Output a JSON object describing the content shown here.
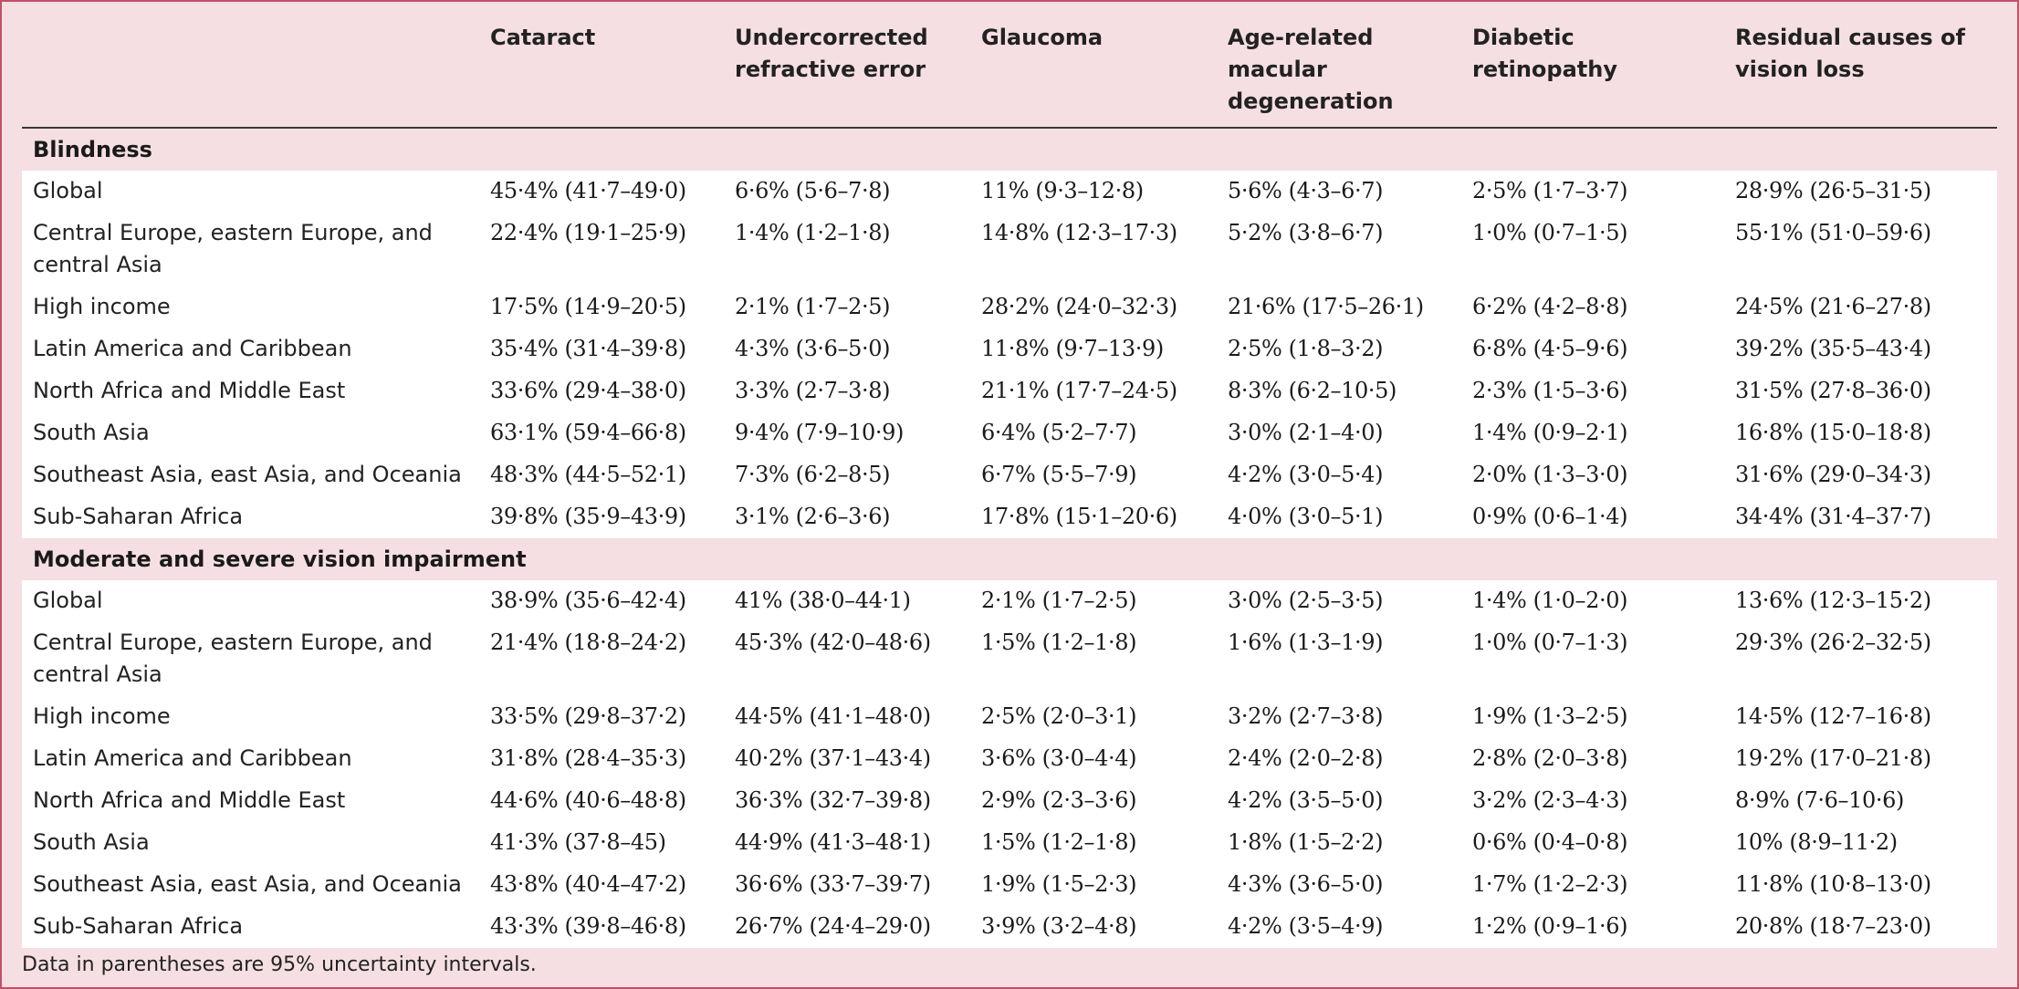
{
  "header": {
    "columns": [
      "",
      "Cataract",
      "Undercorrected refractive error",
      "Glaucoma",
      "Age-related macular degeneration",
      "Diabetic retinopathy",
      "Residual causes of vision loss"
    ]
  },
  "sections": [
    {
      "title": "Blindness",
      "rows": [
        {
          "region": "Global",
          "values": [
            "45·4% (41·7–49·0)",
            "6·6% (5·6–7·8)",
            "11% (9·3–12·8)",
            "5·6% (4·3–6·7)",
            "2·5% (1·7–3·7)",
            "28·9% (26·5–31·5)"
          ]
        },
        {
          "region": "Central Europe, eastern Europe, and central Asia",
          "values": [
            "22·4% (19·1–25·9)",
            "1·4% (1·2–1·8)",
            "14·8% (12·3–17·3)",
            "5·2% (3·8–6·7)",
            "1·0% (0·7–1·5)",
            "55·1% (51·0–59·6)"
          ]
        },
        {
          "region": "High income",
          "values": [
            "17·5% (14·9–20·5)",
            "2·1% (1·7–2·5)",
            "28·2% (24·0–32·3)",
            "21·6% (17·5–26·1)",
            "6·2% (4·2–8·8)",
            "24·5% (21·6–27·8)"
          ]
        },
        {
          "region": "Latin America and Caribbean",
          "values": [
            "35·4% (31·4–39·8)",
            "4·3% (3·6–5·0)",
            "11·8% (9·7–13·9)",
            "2·5% (1·8–3·2)",
            "6·8% (4·5–9·6)",
            "39·2% (35·5–43·4)"
          ]
        },
        {
          "region": "North Africa and Middle East",
          "values": [
            "33·6% (29·4–38·0)",
            "3·3% (2·7–3·8)",
            "21·1% (17·7–24·5)",
            "8·3% (6·2–10·5)",
            "2·3% (1·5–3·6)",
            "31·5% (27·8–36·0)"
          ]
        },
        {
          "region": "South Asia",
          "values": [
            "63·1% (59·4–66·8)",
            "9·4% (7·9–10·9)",
            "6·4% (5·2–7·7)",
            "3·0% (2·1–4·0)",
            "1·4% (0·9–2·1)",
            "16·8% (15·0–18·8)"
          ]
        },
        {
          "region": "Southeast Asia, east Asia, and Oceania",
          "values": [
            "48·3% (44·5–52·1)",
            "7·3% (6·2–8·5)",
            "6·7% (5·5–7·9)",
            "4·2% (3·0–5·4)",
            "2·0% (1·3–3·0)",
            "31·6% (29·0–34·3)"
          ]
        },
        {
          "region": "Sub-Saharan Africa",
          "values": [
            "39·8% (35·9–43·9)",
            "3·1% (2·6–3·6)",
            "17·8% (15·1–20·6)",
            "4·0% (3·0–5·1)",
            "0·9% (0·6–1·4)",
            "34·4% (31·4–37·7)"
          ]
        }
      ]
    },
    {
      "title": "Moderate and severe vision impairment",
      "rows": [
        {
          "region": "Global",
          "values": [
            "38·9% (35·6–42·4)",
            "41% (38·0–44·1)",
            "2·1% (1·7–2·5)",
            "3·0% (2·5–3·5)",
            "1·4% (1·0–2·0)",
            "13·6% (12·3–15·2)"
          ]
        },
        {
          "region": "Central Europe, eastern Europe, and central Asia",
          "values": [
            "21·4% (18·8–24·2)",
            "45·3% (42·0–48·6)",
            "1·5% (1·2–1·8)",
            "1·6% (1·3–1·9)",
            "1·0% (0·7–1·3)",
            "29·3% (26·2–32·5)"
          ]
        },
        {
          "region": "High income",
          "values": [
            "33·5% (29·8–37·2)",
            "44·5% (41·1–48·0)",
            "2·5% (2·0–3·1)",
            "3·2% (2·7–3·8)",
            "1·9% (1·3–2·5)",
            "14·5% (12·7–16·8)"
          ]
        },
        {
          "region": "Latin America and Caribbean",
          "values": [
            "31·8% (28·4–35·3)",
            "40·2% (37·1–43·4)",
            "3·6% (3·0–4·4)",
            "2·4% (2·0–2·8)",
            "2·8% (2·0–3·8)",
            "19·2% (17·0–21·8)"
          ]
        },
        {
          "region": "North Africa and Middle East",
          "values": [
            "44·6% (40·6–48·8)",
            "36·3% (32·7–39·8)",
            "2·9% (2·3–3·6)",
            "4·2% (3·5–5·0)",
            "3·2% (2·3–4·3)",
            "8·9% (7·6–10·6)"
          ]
        },
        {
          "region": "South Asia",
          "values": [
            "41·3% (37·8–45)",
            "44·9% (41·3–48·1)",
            "1·5% (1·2–1·8)",
            "1·8% (1·5–2·2)",
            "0·6% (0·4–0·8)",
            "10% (8·9–11·2)"
          ]
        },
        {
          "region": "Southeast Asia, east Asia, and Oceania",
          "values": [
            "43·8% (40·4–47·2)",
            "36·6% (33·7–39·7)",
            "1·9% (1·5–2·3)",
            "4·3% (3·6–5·0)",
            "1·7% (1·2–2·3)",
            "11·8% (10·8–13·0)"
          ]
        },
        {
          "region": "Sub-Saharan Africa",
          "values": [
            "43·3% (39·8–46·8)",
            "26·7% (24·4–29·0)",
            "3·9% (3·2–4·8)",
            "4·2% (3·5–4·9)",
            "1·2% (0·9–1·6)",
            "20·8% (18·7–23·0)"
          ]
        }
      ]
    }
  ],
  "footnote": "Data in parentheses are 95% uncertainty intervals."
}
